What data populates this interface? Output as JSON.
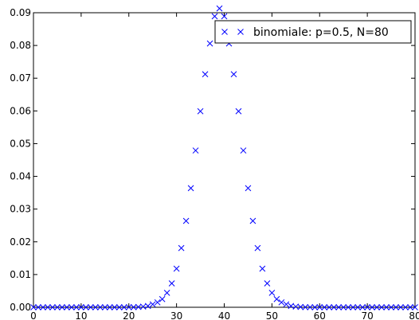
{
  "chart_data": {
    "type": "scatter",
    "marker": "x",
    "marker_color": "#0000ff",
    "grid": false,
    "legend_position": "upper-right",
    "xlim": [
      0,
      80
    ],
    "ylim": [
      0,
      0.09
    ],
    "x_ticks": [
      0,
      10,
      20,
      30,
      40,
      50,
      60,
      70,
      80
    ],
    "y_ticks": [
      0.0,
      0.01,
      0.02,
      0.03,
      0.04,
      0.05,
      0.06,
      0.07,
      0.08,
      0.09
    ],
    "x_tick_labels": [
      "0",
      "10",
      "20",
      "30",
      "40",
      "50",
      "60",
      "70",
      "80"
    ],
    "y_tick_labels": [
      "0.00",
      "0.01",
      "0.02",
      "0.03",
      "0.04",
      "0.05",
      "0.06",
      "0.07",
      "0.08",
      "0.09"
    ],
    "series": [
      {
        "name": "binomiale: p=0.5, N=80",
        "x": [
          0,
          1,
          2,
          3,
          4,
          5,
          6,
          7,
          8,
          9,
          10,
          11,
          12,
          13,
          14,
          15,
          16,
          17,
          18,
          19,
          20,
          21,
          22,
          23,
          24,
          25,
          26,
          27,
          28,
          29,
          30,
          31,
          32,
          33,
          34,
          35,
          36,
          37,
          38,
          39,
          40,
          41,
          42,
          43,
          44,
          45,
          46,
          47,
          48,
          49,
          50,
          51,
          52,
          53,
          54,
          55,
          56,
          57,
          58,
          59,
          60,
          61,
          62,
          63,
          64,
          65,
          66,
          67,
          68,
          69,
          70,
          71,
          72,
          73,
          74,
          75,
          76,
          77,
          78,
          79,
          80
        ],
        "y": [
          0,
          0,
          0,
          0,
          0,
          0,
          0,
          0,
          0,
          0,
          0,
          0,
          0,
          0,
          0,
          0,
          0,
          0,
          0,
          0,
          1e-05,
          3e-05,
          0.0001,
          0.0002,
          0.0004,
          0.0009,
          0.0015,
          0.0025,
          0.0044,
          0.0073,
          0.0118,
          0.0181,
          0.0264,
          0.0364,
          0.0479,
          0.0599,
          0.0712,
          0.0806,
          0.0889,
          0.0913,
          0.0889,
          0.0806,
          0.0712,
          0.0599,
          0.0479,
          0.0364,
          0.0264,
          0.0181,
          0.0118,
          0.0073,
          0.0044,
          0.0025,
          0.0015,
          0.0009,
          0.0004,
          0.0002,
          0.0001,
          3e-05,
          1e-05,
          0,
          0,
          0,
          0,
          0,
          0,
          0,
          0,
          0,
          0,
          0,
          0,
          0,
          0,
          0,
          0,
          0,
          0,
          0,
          0,
          0,
          0
        ]
      }
    ]
  }
}
